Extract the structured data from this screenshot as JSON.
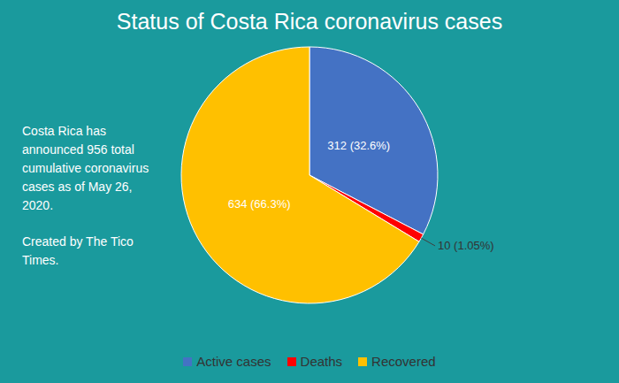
{
  "chart_data": {
    "type": "pie",
    "title": "Status of Costa Rica coronavirus cases",
    "categories": [
      "Active cases",
      "Deaths",
      "Recovered"
    ],
    "values": [
      312,
      10,
      634
    ],
    "value_labels": [
      "312 (32.6%)",
      "10 (1.05%)",
      "634 (66.3%)"
    ],
    "colors": [
      "#4472c4",
      "#ff0000",
      "#ffc000"
    ],
    "data_labels": true,
    "legend": "bottom",
    "annotations": [
      "Costa Rica has announced 956 total cumulative coronavirus cases as of May 26, 2020.",
      "Created by The Tico Times."
    ]
  }
}
